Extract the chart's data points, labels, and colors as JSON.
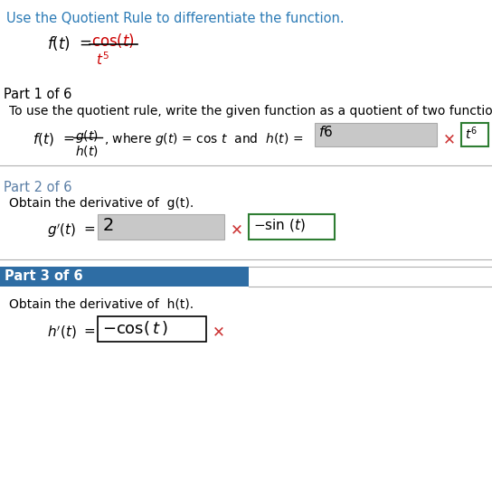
{
  "title_text": "Use the Quotient Rule to differentiate the function.",
  "part1_label": "Part 1 of 6",
  "part1_desc": "To use the quotient rule, write the given function as a quotient of two functions.",
  "part2_label": "Part 2 of 6",
  "part2_desc": "Obtain the derivative of  g(t).",
  "part3_label": "Part 3 of 6",
  "part3_desc": "Obtain the derivative of  h(t).",
  "bg_color": "#ffffff",
  "title_color": "#2c7bb6",
  "text_color": "#000000",
  "part2_label_color": "#5b7fa6",
  "part3_bg_color": "#2e6da4",
  "part3_text_color": "#ffffff",
  "wrong_box_bg": "#c8c8c8",
  "correct_box_border": "#2e7d32",
  "x_color": "#cc3333",
  "line_color": "#b0b0b0",
  "red_fraction_color": "#cc0000",
  "fig_w": 5.44,
  "fig_h": 5.41,
  "dpi": 100
}
